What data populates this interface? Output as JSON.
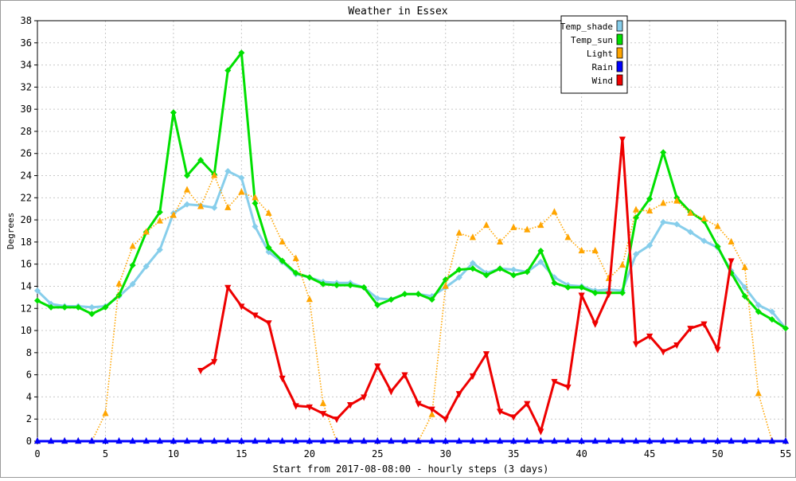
{
  "chart_data": {
    "type": "line",
    "title": "Weather in Essex",
    "xlabel": "Start from 2017-08-08:00 - hourly steps (3 days)",
    "ylabel": "Degrees",
    "xlim": [
      0,
      55
    ],
    "ylim": [
      0,
      38
    ],
    "x_ticks": [
      0,
      5,
      10,
      15,
      20,
      25,
      30,
      35,
      40,
      45,
      50,
      55
    ],
    "y_ticks": [
      0,
      2,
      4,
      6,
      8,
      10,
      12,
      14,
      16,
      18,
      20,
      22,
      24,
      26,
      28,
      30,
      32,
      34,
      36,
      38
    ],
    "grid": true,
    "legend_position": "top-right",
    "series": [
      {
        "name": "Temp_shade",
        "color": "#87CEEB",
        "line_style": "solid",
        "marker": "diamond",
        "x_start": 0,
        "values": [
          13.6,
          12.4,
          12.2,
          12.2,
          12.1,
          12.2,
          13.1,
          14.2,
          15.8,
          17.3,
          20.6,
          21.4,
          21.3,
          21.1,
          24.4,
          23.8,
          19.4,
          17.1,
          16.2,
          15.1,
          14.8,
          14.4,
          14.3,
          14.3,
          13.9,
          12.9,
          12.8,
          13.3,
          13.3,
          13.1,
          13.9,
          14.8,
          16.1,
          15.2,
          15.6,
          15.5,
          15.3,
          16.2,
          14.8,
          14.1,
          14.0,
          13.6,
          13.7,
          13.6,
          16.9,
          17.7,
          19.8,
          19.6,
          18.9,
          18.1,
          17.5,
          15.4,
          13.9,
          12.3,
          11.7,
          10.2
        ]
      },
      {
        "name": "Temp_sun",
        "color": "#00E000",
        "line_style": "solid",
        "marker": "diamond",
        "x_start": 0,
        "values": [
          12.7,
          12.1,
          12.1,
          12.1,
          11.5,
          12.1,
          13.2,
          15.9,
          18.9,
          20.7,
          29.7,
          24.0,
          25.4,
          24.1,
          33.5,
          35.1,
          21.5,
          17.5,
          16.3,
          15.2,
          14.8,
          14.2,
          14.1,
          14.1,
          13.9,
          12.3,
          12.8,
          13.3,
          13.3,
          12.8,
          14.6,
          15.5,
          15.6,
          15.0,
          15.6,
          15.0,
          15.3,
          17.2,
          14.3,
          13.9,
          13.9,
          13.4,
          13.4,
          13.4,
          20.2,
          21.9,
          26.1,
          22.0,
          20.7,
          19.9,
          17.6,
          15.2,
          13.1,
          11.7,
          11.0,
          10.2
        ]
      },
      {
        "name": "Light",
        "color": "#FFA500",
        "line_style": "dotted",
        "marker": "triangle-up",
        "x_start": 0,
        "values": [
          0,
          0,
          0,
          0,
          0,
          2.5,
          14.2,
          17.6,
          18.9,
          19.9,
          20.4,
          22.7,
          21.2,
          24.0,
          21.1,
          22.5,
          22.0,
          20.6,
          18.0,
          16.5,
          12.8,
          3.4,
          0,
          0,
          0,
          0,
          0,
          0,
          0,
          2.4,
          14.0,
          18.8,
          18.4,
          19.5,
          18.0,
          19.3,
          19.1,
          19.5,
          20.7,
          18.4,
          17.2,
          17.2,
          14.7,
          15.9,
          20.9,
          20.8,
          21.5,
          21.7,
          20.6,
          20.1,
          19.4,
          18.0,
          15.7,
          4.3,
          0,
          0
        ]
      },
      {
        "name": "Rain",
        "color": "#0000FF",
        "line_style": "solid",
        "marker": "triangle-up",
        "x_start": 0,
        "values": [
          0,
          0,
          0,
          0,
          0,
          0,
          0,
          0,
          0,
          0,
          0,
          0,
          0,
          0,
          0,
          0,
          0,
          0,
          0,
          0,
          0,
          0,
          0,
          0,
          0,
          0,
          0,
          0,
          0,
          0,
          0,
          0,
          0,
          0,
          0,
          0,
          0,
          0,
          0,
          0,
          0,
          0,
          0,
          0,
          0,
          0,
          0,
          0,
          0,
          0,
          0,
          0,
          0,
          0,
          0,
          0
        ]
      },
      {
        "name": "Wind",
        "color": "#EE0000",
        "line_style": "solid",
        "marker": "triangle-down",
        "x_start": 12,
        "values": [
          6.4,
          7.2,
          13.9,
          12.2,
          11.4,
          10.7,
          5.7,
          3.2,
          3.1,
          2.5,
          2.0,
          3.3,
          4.0,
          6.8,
          4.5,
          6.0,
          3.4,
          2.9,
          2.0,
          4.3,
          5.9,
          7.9,
          2.7,
          2.2,
          3.4,
          0.9,
          5.4,
          4.9,
          13.2,
          10.6,
          13.3,
          27.3,
          8.8,
          9.5,
          8.1,
          8.7,
          10.2,
          10.6,
          8.3,
          16.3
        ]
      }
    ]
  }
}
